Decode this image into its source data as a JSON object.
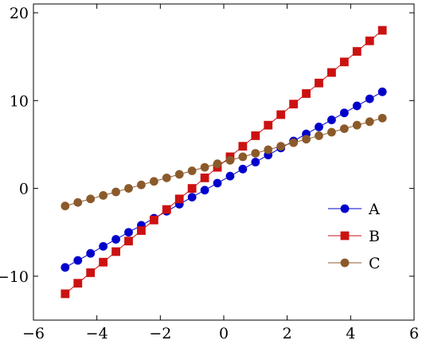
{
  "chart_data": {
    "type": "line",
    "xlim": [
      -6,
      6
    ],
    "ylim": [
      -15,
      21
    ],
    "xticks": [
      -6,
      -4,
      -2,
      0,
      2,
      4,
      6
    ],
    "yticks": [
      -10,
      0,
      10,
      20
    ],
    "x": [
      -5.0,
      -4.6,
      -4.2,
      -3.8,
      -3.4,
      -3.0,
      -2.6,
      -2.2,
      -1.8,
      -1.4,
      -1.0,
      -0.6,
      -0.2,
      0.2,
      0.6,
      1.0,
      1.4,
      1.8,
      2.2,
      2.6,
      3.0,
      3.4,
      3.8,
      4.2,
      4.6,
      5.0
    ],
    "grid": false,
    "legend_position": "lower-right",
    "series": [
      {
        "name": "A",
        "color": "#0000cc",
        "marker": "circle",
        "values": [
          -9.0,
          -8.2,
          -7.4,
          -6.6,
          -5.8,
          -5.0,
          -4.2,
          -3.4,
          -2.6,
          -1.8,
          -1.0,
          -0.2,
          0.6,
          1.4,
          2.2,
          3.0,
          3.8,
          4.6,
          5.4,
          6.2,
          7.0,
          7.8,
          8.6,
          9.4,
          10.2,
          11.0
        ]
      },
      {
        "name": "B",
        "color": "#cc1111",
        "marker": "square",
        "values": [
          -12.0,
          -10.8,
          -9.6,
          -8.4,
          -7.2,
          -6.0,
          -4.8,
          -3.6,
          -2.4,
          -1.2,
          0.0,
          1.2,
          2.4,
          3.6,
          4.8,
          6.0,
          7.2,
          8.4,
          9.6,
          10.8,
          12.0,
          13.2,
          14.4,
          15.6,
          16.8,
          18.0
        ]
      },
      {
        "name": "C",
        "color": "#8b5a2b",
        "marker": "circle",
        "values": [
          -2.0,
          -1.6,
          -1.2,
          -0.8,
          -0.4,
          0.0,
          0.4,
          0.8,
          1.2,
          1.6,
          2.0,
          2.4,
          2.8,
          3.2,
          3.6,
          4.0,
          4.4,
          4.8,
          5.2,
          5.6,
          6.0,
          6.4,
          6.8,
          7.2,
          7.6,
          8.0
        ]
      }
    ]
  }
}
